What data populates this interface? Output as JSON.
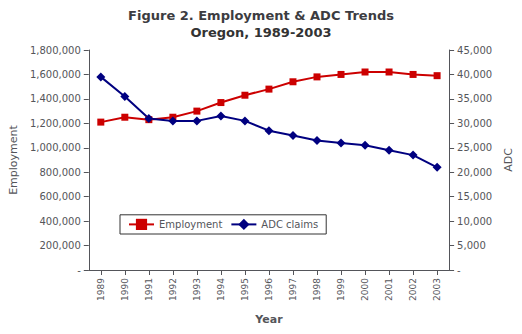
{
  "chart_data": {
    "type": "line",
    "title": "Figure 2. Employment & ADC Trends",
    "subtitle": "Oregon, 1989-2003",
    "xlabel": "Year",
    "ylabel": "Employment",
    "y2label": "ADC",
    "x": [
      1989,
      1990,
      1991,
      1992,
      1993,
      1994,
      1995,
      1996,
      1997,
      1998,
      1999,
      2000,
      2001,
      2002,
      2003
    ],
    "xlim": [
      1988.5,
      2003.5
    ],
    "xticks": [
      1989,
      1990,
      1991,
      1992,
      1993,
      1994,
      1995,
      1996,
      1997,
      1998,
      1999,
      2000,
      2001,
      2002,
      2003
    ],
    "ylim": [
      0,
      1800000
    ],
    "yticks": [
      {
        "value": 0,
        "label": "-"
      },
      {
        "value": 200000,
        "label": "200,000"
      },
      {
        "value": 400000,
        "label": "400,000"
      },
      {
        "value": 600000,
        "label": "600,000"
      },
      {
        "value": 800000,
        "label": "800,000"
      },
      {
        "value": 1000000,
        "label": "1,000,000"
      },
      {
        "value": 1200000,
        "label": "1,200,000"
      },
      {
        "value": 1400000,
        "label": "1,400,000"
      },
      {
        "value": 1600000,
        "label": "1,600,000"
      },
      {
        "value": 1800000,
        "label": "1,800,000"
      }
    ],
    "y2lim": [
      0,
      45000
    ],
    "y2ticks": [
      {
        "value": 0,
        "label": "-"
      },
      {
        "value": 5000,
        "label": "5,000"
      },
      {
        "value": 10000,
        "label": "10,000"
      },
      {
        "value": 15000,
        "label": "15,000"
      },
      {
        "value": 20000,
        "label": "20,000"
      },
      {
        "value": 25000,
        "label": "25,000"
      },
      {
        "value": 30000,
        "label": "30,000"
      },
      {
        "value": 35000,
        "label": "35,000"
      },
      {
        "value": 40000,
        "label": "40,000"
      },
      {
        "value": 45000,
        "label": "45,000"
      }
    ],
    "grid": false,
    "legend": "lower left",
    "series": [
      {
        "name": "Employment",
        "color": "#CC0000",
        "marker": "square",
        "values": [
          1210000,
          1250000,
          1230000,
          1250000,
          1300000,
          1370000,
          1430000,
          1480000,
          1540000,
          1580000,
          1600000,
          1620000,
          1620000,
          1600000,
          1590000
        ]
      },
      {
        "name": "ADC claims",
        "color": "#000080",
        "marker": "diamond",
        "axis": "y2",
        "values": [
          39500,
          35500,
          31000,
          30500,
          30500,
          31500,
          30500,
          28500,
          27500,
          26500,
          26000,
          25500,
          24500,
          23500,
          21000
        ]
      }
    ]
  }
}
